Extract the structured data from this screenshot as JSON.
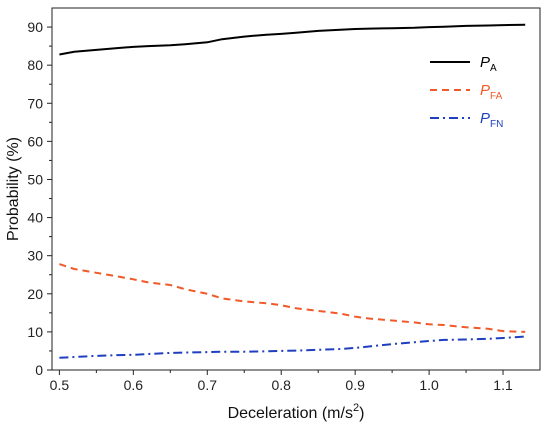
{
  "chart_data": {
    "type": "line",
    "title": "",
    "xlabel_main": "Deceleration (m/s",
    "xlabel_sup": "2",
    "xlabel_end": ")",
    "ylabel": "Probability (%)",
    "xlim": [
      0.49,
      1.15
    ],
    "ylim": [
      0,
      95
    ],
    "xticks": [
      0.5,
      0.6,
      0.7,
      0.8,
      0.9,
      1.0,
      1.1
    ],
    "xtick_labels": [
      "0.5",
      "0.6",
      "0.7",
      "0.8",
      "0.9",
      "1.0",
      "1.1"
    ],
    "yticks": [
      0,
      10,
      20,
      30,
      40,
      50,
      60,
      70,
      80,
      90
    ],
    "ytick_labels": [
      "0",
      "10",
      "20",
      "30",
      "40",
      "50",
      "60",
      "70",
      "80",
      "90"
    ],
    "grid": false,
    "legend_position": "top-right",
    "series": [
      {
        "name_main": "P",
        "name_sub": "A",
        "color": "#000000",
        "dash": "solid",
        "x": [
          0.5,
          0.52,
          0.55,
          0.58,
          0.6,
          0.62,
          0.65,
          0.67,
          0.7,
          0.72,
          0.75,
          0.78,
          0.8,
          0.82,
          0.85,
          0.88,
          0.9,
          0.92,
          0.95,
          0.98,
          1.0,
          1.02,
          1.05,
          1.08,
          1.1,
          1.13
        ],
        "y": [
          82.8,
          83.5,
          84.0,
          84.5,
          84.8,
          85.0,
          85.2,
          85.5,
          86.0,
          86.8,
          87.5,
          88.0,
          88.2,
          88.5,
          89.0,
          89.3,
          89.5,
          89.6,
          89.7,
          89.8,
          90.0,
          90.1,
          90.3,
          90.4,
          90.5,
          90.6
        ]
      },
      {
        "name_main": "P",
        "name_sub": "FA",
        "color": "#f05a28",
        "dash": "dashed",
        "x": [
          0.5,
          0.52,
          0.55,
          0.58,
          0.6,
          0.62,
          0.65,
          0.67,
          0.7,
          0.72,
          0.75,
          0.78,
          0.8,
          0.82,
          0.85,
          0.88,
          0.9,
          0.92,
          0.95,
          0.98,
          1.0,
          1.02,
          1.05,
          1.08,
          1.1,
          1.13
        ],
        "y": [
          27.8,
          26.5,
          25.5,
          24.5,
          23.8,
          23.0,
          22.3,
          21.2,
          20.0,
          18.8,
          18.0,
          17.5,
          17.0,
          16.2,
          15.5,
          14.8,
          14.0,
          13.5,
          13.0,
          12.5,
          12.0,
          11.8,
          11.2,
          10.8,
          10.2,
          10.0
        ]
      },
      {
        "name_main": "P",
        "name_sub": "FN",
        "color": "#1f3fbf",
        "dash": "dashdot",
        "x": [
          0.5,
          0.52,
          0.55,
          0.58,
          0.6,
          0.62,
          0.65,
          0.67,
          0.7,
          0.72,
          0.75,
          0.78,
          0.8,
          0.82,
          0.85,
          0.88,
          0.9,
          0.92,
          0.95,
          0.98,
          1.0,
          1.02,
          1.05,
          1.08,
          1.1,
          1.13
        ],
        "y": [
          3.2,
          3.4,
          3.7,
          3.9,
          4.0,
          4.2,
          4.5,
          4.6,
          4.7,
          4.8,
          4.8,
          4.9,
          5.0,
          5.1,
          5.3,
          5.5,
          5.8,
          6.2,
          6.8,
          7.3,
          7.6,
          7.9,
          8.0,
          8.2,
          8.4,
          8.8
        ]
      }
    ]
  }
}
